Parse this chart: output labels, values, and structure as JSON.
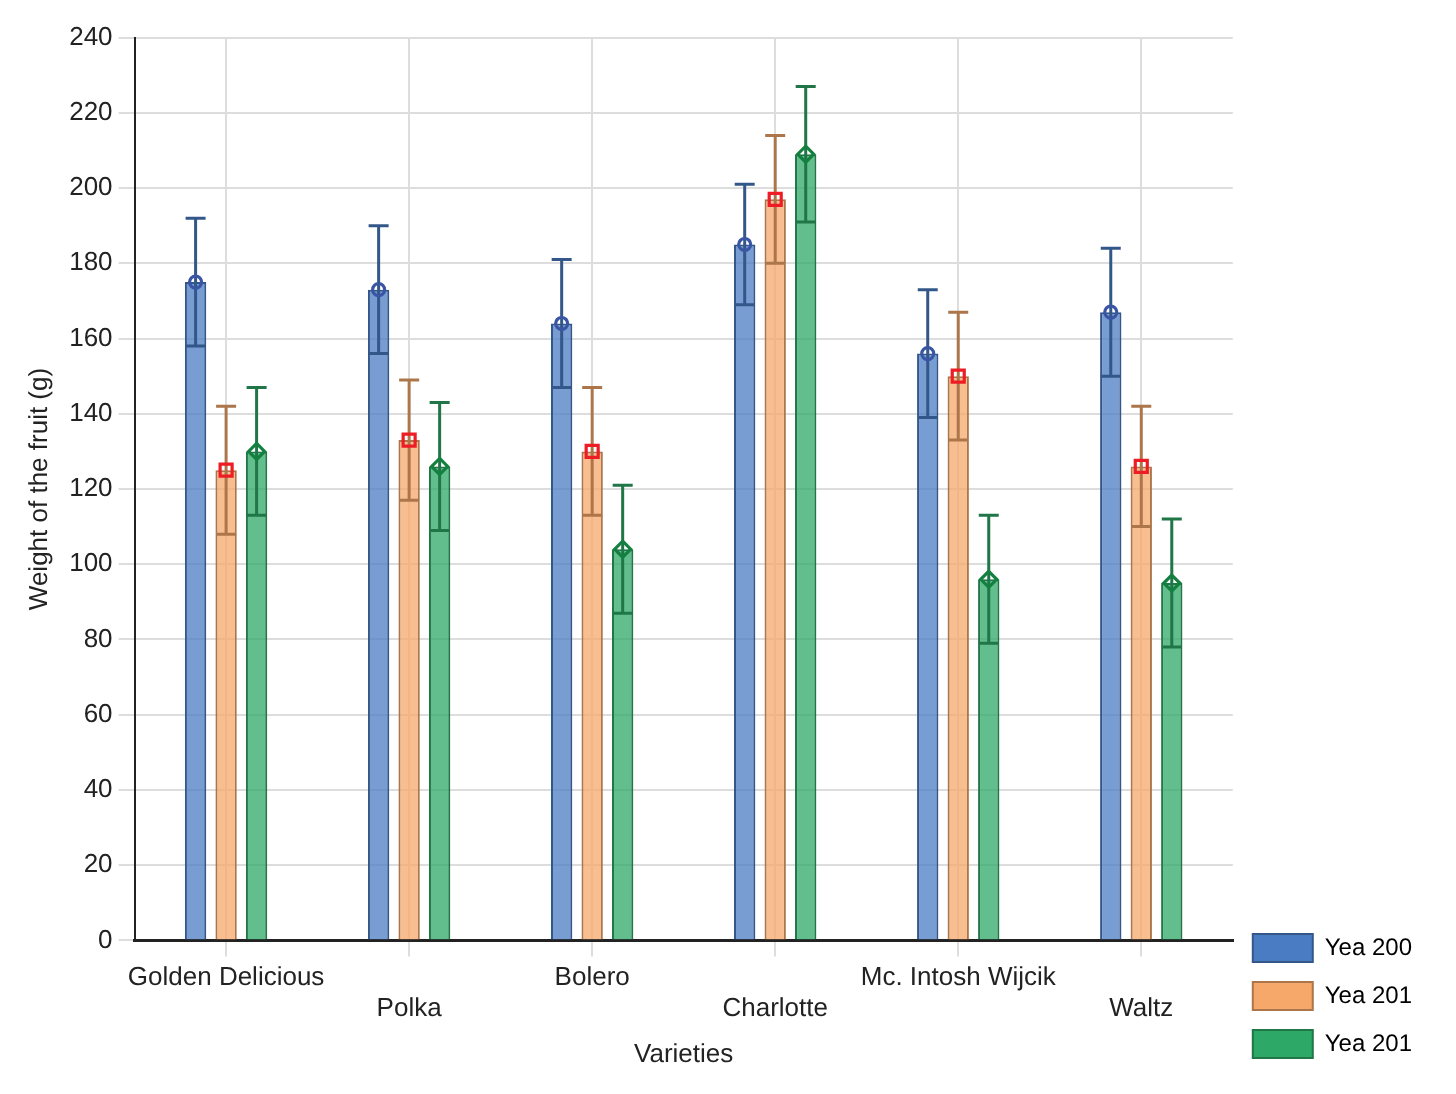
{
  "chart_data": {
    "type": "bar",
    "xlabel": "Varieties",
    "ylabel": "Weight of the fruit (g)",
    "categories": [
      "Golden Delicious",
      "Polka",
      "Bolero",
      "Charlotte",
      "Mc. Intosh Wijcik",
      "Waltz"
    ],
    "series": [
      {
        "name": "Yea 200",
        "color": "#4a7cc4",
        "values": [
          175,
          173,
          164,
          185,
          156,
          167
        ],
        "errors": [
          17,
          17,
          17,
          16,
          17,
          17
        ]
      },
      {
        "name": "Yea 201",
        "color": "#f5a86a",
        "values": [
          125,
          133,
          130,
          197,
          150,
          126
        ],
        "errors": [
          17,
          16,
          17,
          17,
          17,
          16
        ]
      },
      {
        "name": "Yea 201",
        "color": "#2ea866",
        "values": [
          130,
          126,
          104,
          209,
          96,
          95
        ],
        "errors": [
          17,
          17,
          17,
          18,
          17,
          17
        ]
      },
      {
        "type": "scatter",
        "color": "#3a55a4",
        "marker": "circle",
        "x": [
          "Golden Delicious",
          "Polka",
          "Bolero",
          "Charlotte",
          "Mc. Intosh Wijcik",
          "Waltz"
        ],
        "values": [
          175,
          173,
          164,
          185,
          156,
          167
        ]
      },
      {
        "type": "scatter",
        "color": "#ee1c24",
        "marker": "square",
        "x": [
          "Golden Delicious",
          "Polka",
          "Bolero",
          "Charlotte",
          "Mc. Intosh Wijcik",
          "Waltz"
        ],
        "values": [
          125,
          133,
          130,
          197,
          150,
          126
        ]
      },
      {
        "type": "scatter",
        "color": "#138040",
        "marker": "diamond",
        "x": [
          "Golden Delicious",
          "Polka",
          "Bolero",
          "Charlotte",
          "Mc. Intosh Wijcik",
          "Waltz"
        ],
        "values": [
          130,
          126,
          104,
          209,
          96,
          95
        ]
      }
    ],
    "ylim": [
      0,
      240
    ],
    "yticks": [
      0,
      20,
      40,
      60,
      80,
      100,
      120,
      140,
      160,
      180,
      200,
      220,
      240
    ],
    "grid": true,
    "legend": "bottom right"
  }
}
